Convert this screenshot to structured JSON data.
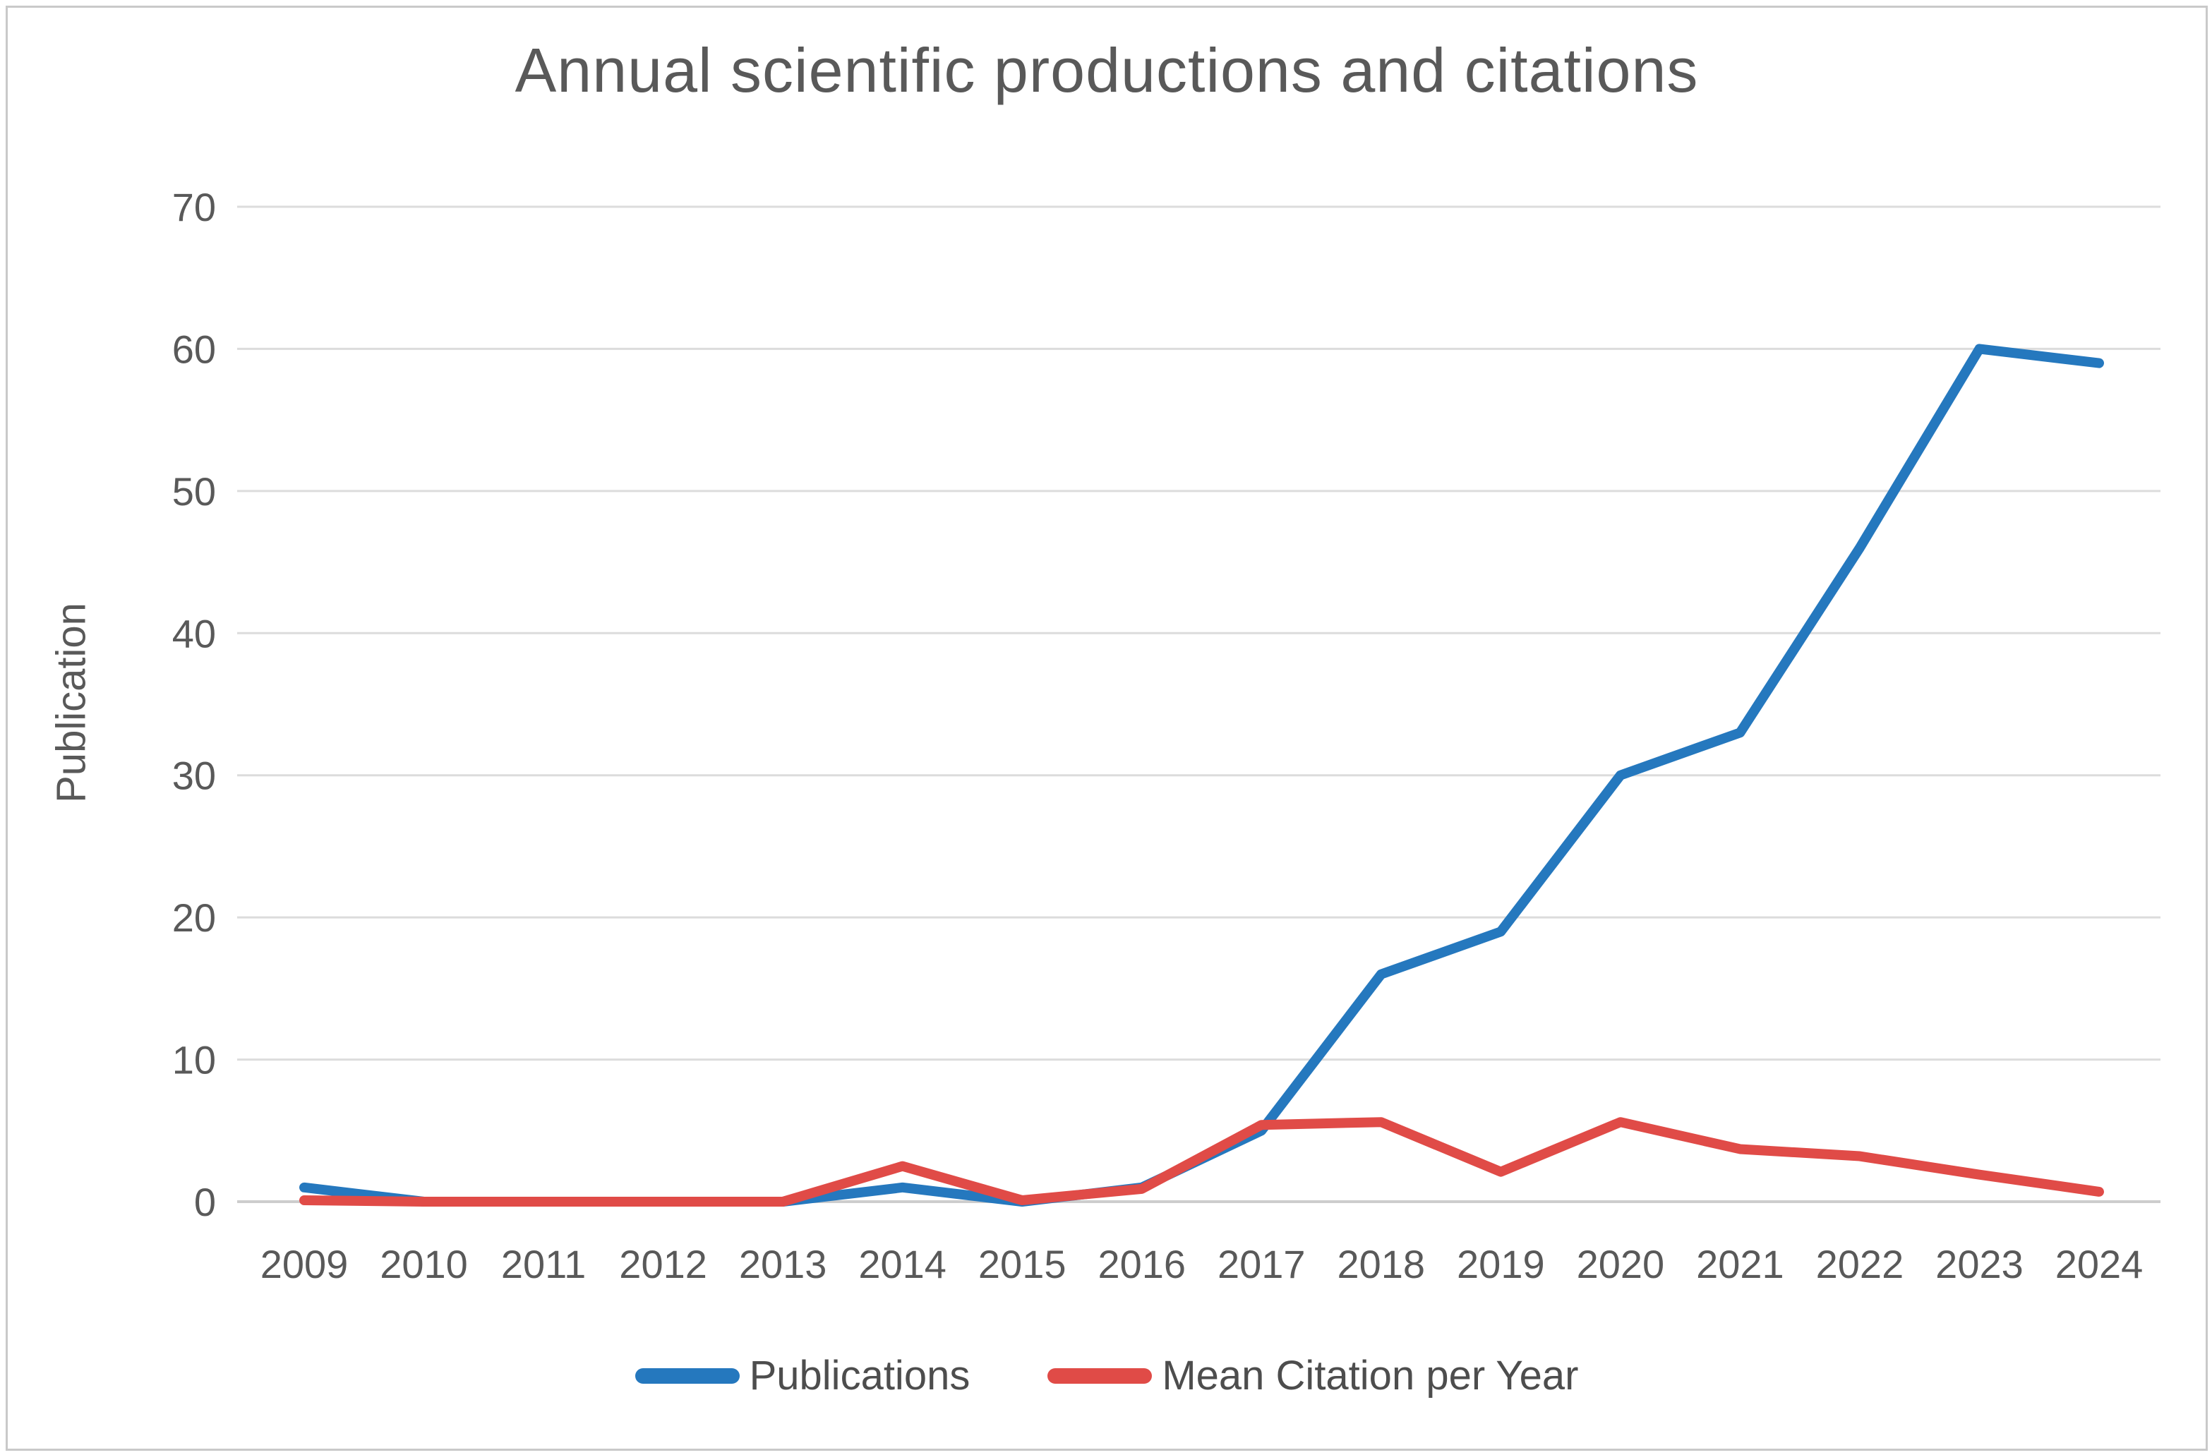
{
  "chart_data": {
    "type": "line",
    "title": "Annual scientific productions and citations",
    "xlabel": "",
    "ylabel": "Publication",
    "x": [
      "2009",
      "2010",
      "2011",
      "2012",
      "2013",
      "2014",
      "2015",
      "2016",
      "2017",
      "2018",
      "2019",
      "2020",
      "2021",
      "2022",
      "2023",
      "2024"
    ],
    "y_ticks": [
      0,
      10,
      20,
      30,
      40,
      50,
      60,
      70
    ],
    "ylim": [
      0,
      70
    ],
    "grid": "horizontal-only",
    "legend_position": "bottom-center",
    "series": [
      {
        "name": "Publications",
        "color": "#2578be",
        "values": [
          1,
          0,
          0,
          0,
          0,
          1,
          0,
          1,
          5,
          16,
          19,
          30,
          33,
          46,
          60,
          59
        ]
      },
      {
        "name": "Mean Citation per Year",
        "color": "#e04b47",
        "values": [
          0.1,
          0,
          0,
          0,
          0,
          2.5,
          0.1,
          0.9,
          5.4,
          5.6,
          2.1,
          5.6,
          3.7,
          3.2,
          1.9,
          0.7
        ]
      }
    ],
    "colors": {
      "gridline": "#dcdcdc",
      "tick_text": "#595959",
      "title_text": "#595959",
      "legend_text": "#4d4d4d",
      "frame_border": "#c9c9c9",
      "background": "#ffffff"
    }
  }
}
